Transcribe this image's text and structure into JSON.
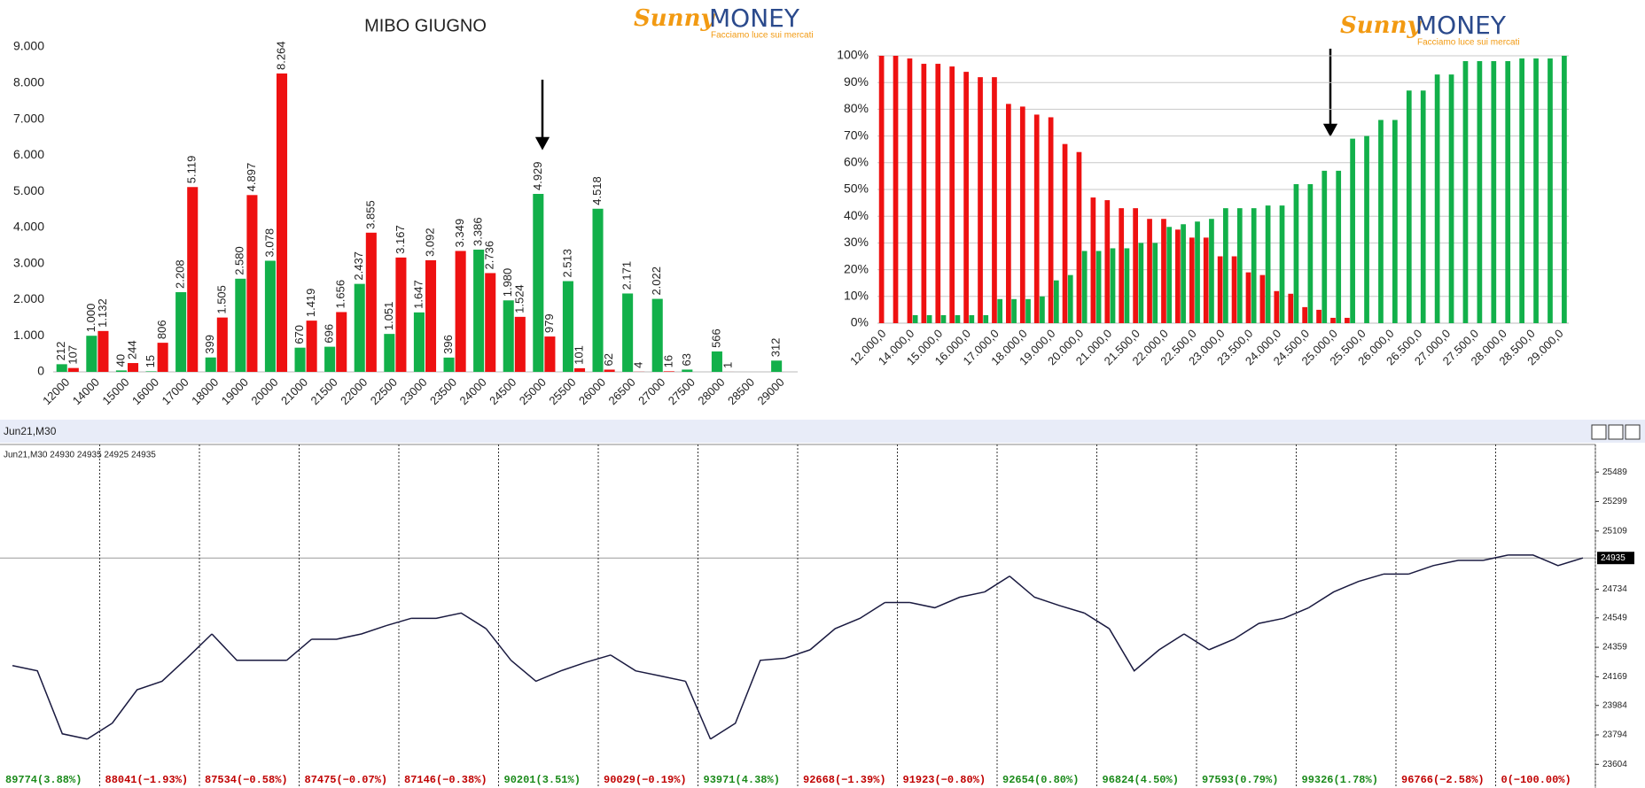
{
  "logo": {
    "brand_a": "Sunny",
    "brand_b": "MONEY",
    "tagline": "Facciamo luce sui mercati"
  },
  "chart_data": [
    {
      "type": "bar",
      "title": "MIBO GIUGNO",
      "categories": [
        "12000",
        "14000",
        "15000",
        "16000",
        "17000",
        "18000",
        "19000",
        "20000",
        "21000",
        "21500",
        "22000",
        "22500",
        "23000",
        "23500",
        "24000",
        "24500",
        "25000",
        "25500",
        "26000",
        "26500",
        "27000",
        "27500",
        "28000",
        "28500",
        "29000"
      ],
      "series": [
        {
          "color": "#12b04a",
          "values": [
            212,
            1000,
            40,
            15,
            2208,
            399,
            2580,
            3078,
            670,
            696,
            2437,
            1051,
            1647,
            396,
            3386,
            1980,
            4929,
            2513,
            4518,
            2171,
            2022,
            63,
            566,
            0,
            312
          ],
          "value_labels": [
            "212",
            "1.000",
            "40",
            "15",
            "2.208",
            "399",
            "2.580",
            "3.078",
            "670",
            "696",
            "2.437",
            "1.051",
            "1.647",
            "396",
            "3.386",
            "1.980",
            "4.929",
            "2.513",
            "4.518",
            "2.171",
            "2.022",
            "63",
            "566",
            null,
            "312"
          ]
        },
        {
          "color": "#ee1111",
          "values": [
            107,
            1132,
            244,
            806,
            5119,
            1505,
            4897,
            8264,
            1419,
            1656,
            3855,
            3167,
            3092,
            3349,
            2736,
            1524,
            979,
            101,
            62,
            4,
            16,
            0,
            1,
            0,
            0
          ],
          "value_labels": [
            "107",
            "1.132",
            "244",
            "806",
            "5.119",
            "1.505",
            "4.897",
            "8.264",
            "1.419",
            "1.656",
            "3.855",
            "3.167",
            "3.092",
            "3.349",
            "2.736",
            "1.524",
            "979",
            "101",
            "62",
            "4",
            "16",
            null,
            "1",
            null,
            null
          ]
        }
      ],
      "ylim": [
        0,
        9000
      ],
      "yticks": [
        0,
        {
          "value": 1000,
          "label": "1.000"
        },
        {
          "value": 2000,
          "label": "2.000"
        },
        {
          "value": 3000,
          "label": "3.000"
        },
        {
          "value": 4000,
          "label": "4.000"
        },
        {
          "value": 5000,
          "label": "5.000"
        },
        {
          "value": 6000,
          "label": "6.000"
        },
        {
          "value": 7000,
          "label": "7.000"
        },
        {
          "value": 8000,
          "label": "8.000"
        },
        {
          "value": 9000,
          "label": "9.000"
        }
      ],
      "grid": false
    },
    {
      "type": "bar",
      "categories": [
        "12.000,0",
        null,
        "14.000,0",
        null,
        "15.000,0",
        null,
        "16.000,0",
        null,
        "17.000,0",
        null,
        "18.000,0",
        null,
        "19.000,0",
        null,
        "20.000,0",
        null,
        "21.000,0",
        null,
        "21.500,0",
        null,
        "22.000,0",
        null,
        "22.500,0",
        null,
        "23.000,0",
        null,
        "23.500,0",
        null,
        "24.000,0",
        null,
        "24.500,0",
        null,
        "25.000,0",
        null,
        "25.500,0",
        null,
        "26.000,0",
        null,
        "26.500,0",
        null,
        "27.000,0",
        null,
        "27.500,0",
        null,
        "28.000,0",
        null,
        "28.500,0",
        null,
        "29.000,0"
      ],
      "series": [
        {
          "color": "#ee1111",
          "values": [
            100,
            100,
            99,
            97,
            97,
            96,
            94,
            92,
            92,
            82,
            81,
            78,
            77,
            67,
            64,
            47,
            46,
            43,
            43,
            39,
            39,
            35,
            32,
            32,
            25,
            25,
            19,
            18,
            12,
            11,
            6,
            5,
            2,
            2,
            0,
            0,
            0,
            0,
            0,
            0,
            0,
            0,
            0,
            0,
            0,
            0,
            0,
            0,
            0
          ]
        },
        {
          "color": "#12b04a",
          "values": [
            0,
            0,
            3,
            3,
            3,
            3,
            3,
            3,
            9,
            9,
            9,
            10,
            16,
            18,
            27,
            27,
            28,
            28,
            30,
            30,
            36,
            37,
            38,
            39,
            43,
            43,
            43,
            44,
            44,
            52,
            52,
            57,
            57,
            69,
            70,
            76,
            76,
            87,
            87,
            93,
            93,
            98,
            98,
            98,
            98,
            99,
            99,
            99,
            100
          ]
        }
      ],
      "ylim": [
        0,
        100
      ],
      "yticks": [
        {
          "value": 0,
          "label": "0%"
        },
        {
          "value": 10,
          "label": "10%"
        },
        {
          "value": 20,
          "label": "20%"
        },
        {
          "value": 30,
          "label": "30%"
        },
        {
          "value": 40,
          "label": "40%"
        },
        {
          "value": 50,
          "label": "50%"
        },
        {
          "value": 60,
          "label": "60%"
        },
        {
          "value": 70,
          "label": "70%"
        },
        {
          "value": 80,
          "label": "80%"
        },
        {
          "value": 90,
          "label": "90%"
        },
        {
          "value": 100,
          "label": "100%"
        }
      ],
      "grid": true
    },
    {
      "type": "line",
      "title": "Jun21,M30",
      "info": "Jun21,M30  24930 24935 24925 24935",
      "color": "#1a1a40",
      "ylim": [
        23480,
        25650
      ],
      "yticks": [
        25489,
        25299,
        25109,
        24734,
        24549,
        24359,
        24169,
        23984,
        23794,
        23604
      ],
      "last_price": 24935,
      "sessions": [
        {
          "label": "89774(3.88%)",
          "color": "#1a8a1a",
          "values": [
            24241,
            24207,
            23801,
            23767
          ]
        },
        {
          "label": "88041(−1.93%)",
          "color": "#c00000",
          "values": [
            23869,
            24085,
            24140,
            24289
          ]
        },
        {
          "label": "87534(−0.58%)",
          "color": "#c00000",
          "values": [
            24445,
            24275,
            24275,
            24275
          ]
        },
        {
          "label": "87475(−0.07%)",
          "color": "#c00000",
          "values": [
            24411,
            24411,
            24445,
            24499
          ]
        },
        {
          "label": "87146(−0.38%)",
          "color": "#c00000",
          "values": [
            24546,
            24546,
            24580,
            24479
          ]
        },
        {
          "label": "90201(3.51%)",
          "color": "#1a8a1a",
          "values": [
            24275,
            24140,
            24207,
            24262
          ]
        },
        {
          "label": "90029(−0.19%)",
          "color": "#c00000",
          "values": [
            24309,
            24207,
            24174,
            24140
          ]
        },
        {
          "label": "93971(4.38%)",
          "color": "#1a8a1a",
          "values": [
            23767,
            23869,
            24275,
            24289
          ]
        },
        {
          "label": "92668(−1.39%)",
          "color": "#c00000",
          "values": [
            24343,
            24479,
            24546,
            24648
          ]
        },
        {
          "label": "91923(−0.80%)",
          "color": "#c00000",
          "values": [
            24648,
            24614,
            24682,
            24716
          ]
        },
        {
          "label": "92654(0.80%)",
          "color": "#1a8a1a",
          "values": [
            24818,
            24682,
            24628,
            24580
          ]
        },
        {
          "label": "96824(4.50%)",
          "color": "#1a8a1a",
          "values": [
            24479,
            24207,
            24343,
            24445
          ]
        },
        {
          "label": "97593(0.79%)",
          "color": "#1a8a1a",
          "values": [
            24343,
            24411,
            24513,
            24546
          ]
        },
        {
          "label": "99326(1.78%)",
          "color": "#1a8a1a",
          "values": [
            24614,
            24716,
            24784,
            24831
          ]
        },
        {
          "label": "96766(−2.58%)",
          "color": "#c00000",
          "values": [
            24831,
            24886,
            24920,
            24920
          ]
        },
        {
          "label": "0(−100.00%)",
          "color": "#c00000",
          "values": [
            24954,
            24954,
            24886,
            24935
          ]
        }
      ]
    }
  ]
}
